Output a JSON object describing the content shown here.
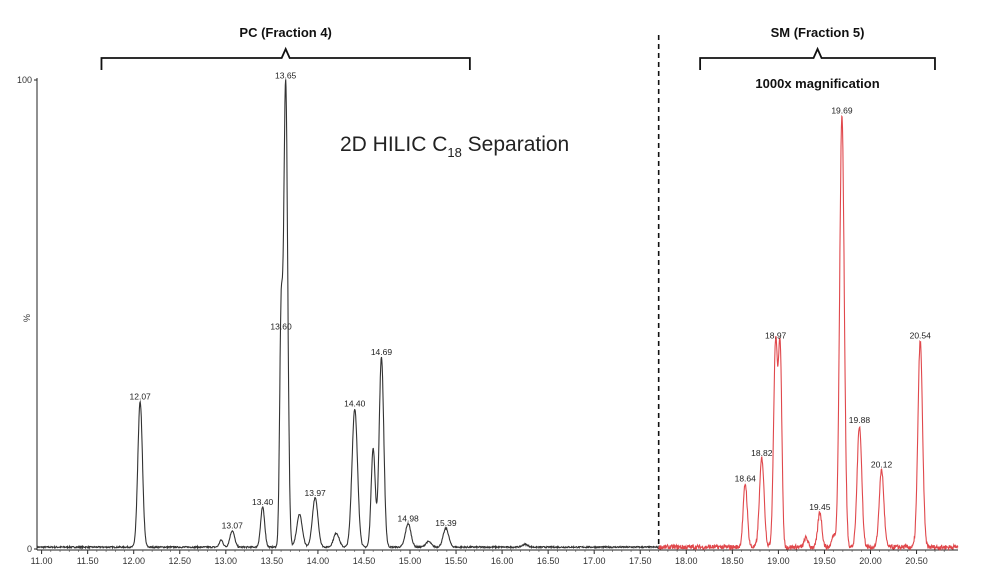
{
  "chart_data": {
    "type": "line",
    "title": "2D HILIC C",
    "title_subscript": "18",
    "title_suffix": " Separation",
    "xlabel": "",
    "ylabel": "%",
    "xlim": [
      10.95,
      20.95
    ],
    "ylim": [
      0,
      100
    ],
    "y_ticks": [
      {
        "v": 0,
        "label": "0"
      },
      {
        "v": 100,
        "label": "100"
      }
    ],
    "x_ticks": [
      "11.00",
      "11.50",
      "12.00",
      "12.50",
      "13.00",
      "13.50",
      "14.00",
      "14.50",
      "15.00",
      "15.50",
      "16.00",
      "16.50",
      "17.00",
      "17.50",
      "18.00",
      "18.50",
      "19.00",
      "19.50",
      "20.00",
      "20.50"
    ],
    "divider_x": 17.7,
    "baseline": 0.4,
    "series": [
      {
        "color": "#333333",
        "range": [
          10.95,
          17.7
        ],
        "peaks": [
          {
            "x": 12.07,
            "y": 31,
            "w": 0.025,
            "label": "12.07"
          },
          {
            "x": 12.95,
            "y": 1.5,
            "w": 0.02
          },
          {
            "x": 13.07,
            "y": 3.5,
            "w": 0.025,
            "label": "13.07"
          },
          {
            "x": 13.4,
            "y": 8.5,
            "w": 0.022,
            "label": "13.40"
          },
          {
            "x": 13.6,
            "y": 46,
            "w": 0.016,
            "label": "13.60"
          },
          {
            "x": 13.65,
            "y": 99.5,
            "w": 0.022,
            "label": "13.65"
          },
          {
            "x": 13.8,
            "y": 7,
            "w": 0.03
          },
          {
            "x": 13.97,
            "y": 10.5,
            "w": 0.03,
            "label": "13.97"
          },
          {
            "x": 14.2,
            "y": 3,
            "w": 0.03
          },
          {
            "x": 14.4,
            "y": 29.5,
            "w": 0.03,
            "label": "14.40"
          },
          {
            "x": 14.6,
            "y": 21,
            "w": 0.022
          },
          {
            "x": 14.69,
            "y": 40.5,
            "w": 0.025,
            "label": "14.69"
          },
          {
            "x": 14.98,
            "y": 5,
            "w": 0.03,
            "label": "14.98"
          },
          {
            "x": 15.2,
            "y": 1.2,
            "w": 0.03
          },
          {
            "x": 15.39,
            "y": 4,
            "w": 0.03,
            "label": "15.39"
          },
          {
            "x": 16.25,
            "y": 0.6,
            "w": 0.03
          }
        ]
      },
      {
        "color": "#e0484c",
        "range": [
          17.7,
          20.95
        ],
        "peaks": [
          {
            "x": 18.64,
            "y": 13.5,
            "w": 0.022,
            "label": "18.64"
          },
          {
            "x": 18.82,
            "y": 19,
            "w": 0.025,
            "label": "18.82"
          },
          {
            "x": 18.97,
            "y": 44,
            "w": 0.022,
            "label": "18.97"
          },
          {
            "x": 19.02,
            "y": 41,
            "w": 0.018
          },
          {
            "x": 19.3,
            "y": 2,
            "w": 0.02
          },
          {
            "x": 19.45,
            "y": 7.5,
            "w": 0.022,
            "label": "19.45"
          },
          {
            "x": 19.6,
            "y": 2.5,
            "w": 0.02
          },
          {
            "x": 19.69,
            "y": 92,
            "w": 0.025,
            "label": "19.69"
          },
          {
            "x": 19.88,
            "y": 26,
            "w": 0.025,
            "label": "19.88"
          },
          {
            "x": 20.12,
            "y": 16.5,
            "w": 0.025,
            "label": "20.12"
          },
          {
            "x": 20.54,
            "y": 44,
            "w": 0.025,
            "label": "20.54"
          }
        ]
      }
    ],
    "brackets": [
      {
        "label": "PC (Fraction 4)",
        "from": 11.65,
        "to": 15.65
      },
      {
        "label": "SM (Fraction 5)",
        "from": 18.15,
        "to": 20.7,
        "note": "1000x magnification"
      }
    ]
  }
}
